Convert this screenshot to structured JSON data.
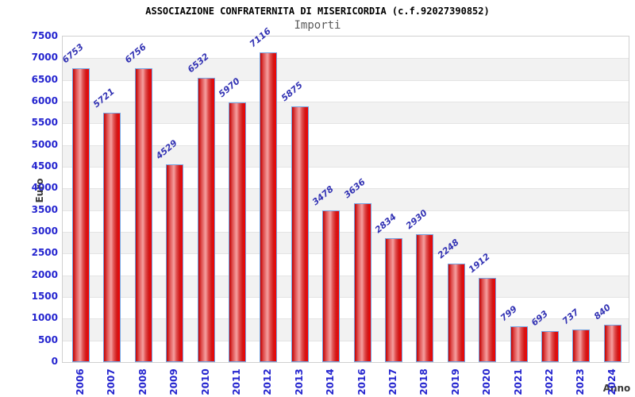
{
  "chart_data": {
    "type": "bar",
    "title": "ASSOCIAZIONE CONFRATERNITA DI MISERICORDIA (c.f.92027390852)",
    "subtitle": "Importi",
    "xlabel": "Anno",
    "ylabel": "Euro",
    "categories": [
      "2006",
      "2007",
      "2008",
      "2009",
      "2010",
      "2011",
      "2012",
      "2013",
      "2014",
      "2016",
      "2017",
      "2018",
      "2019",
      "2020",
      "2021",
      "2022",
      "2023",
      "2024"
    ],
    "values": [
      6753,
      5721,
      6756,
      4529,
      6532,
      5970,
      7116,
      5875,
      3478,
      3636,
      2834,
      2930,
      2248,
      1912,
      799,
      693,
      737,
      840
    ],
    "ylim": [
      0,
      7500
    ],
    "ytick_step": 500,
    "legend": "none",
    "grid": "horizontal gridlines with alternating 500-unit bands",
    "colors": {
      "title_color": "#000000",
      "subtitle_color": "#5a5a5a",
      "axis_title_color": "#3a3a3a",
      "tick_label": "#2424cf",
      "bar_value_label": "#3434b4",
      "bar_border": "#74a2e0",
      "bar_gradient": [
        "#c00000",
        "#e05050",
        "#f5a0a0",
        "#e05050",
        "#d01818",
        "#f40000"
      ],
      "band_light": "#ffffff",
      "band_dark": "#f2f2f2",
      "gridline": "#e4e4e4",
      "plot_border": "#d0d0d0"
    }
  }
}
